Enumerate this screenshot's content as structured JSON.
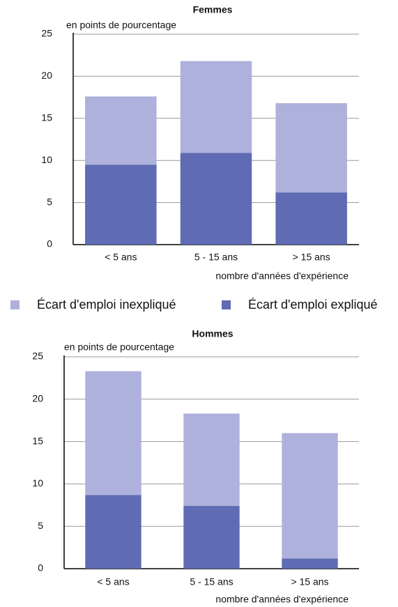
{
  "chart_data": [
    {
      "type": "stacked_bar",
      "title": "Femmes",
      "subtitle": "en points de pourcentage",
      "x_label": "nombre d'années d'expérience",
      "categories": [
        "< 5 ans",
        "5 - 15 ans",
        "> 15 ans"
      ],
      "series": [
        {
          "name": "Écart d'emploi inexpliqué",
          "color": "#aeb1db",
          "values": [
            8.1,
            10.9,
            10.6
          ]
        },
        {
          "name": "Écart d'emploi expliqué",
          "color": "#5f6bb3",
          "values": [
            9.5,
            10.9,
            6.2
          ]
        }
      ],
      "ylim": [
        0,
        25
      ],
      "yticks": [
        0,
        5,
        10,
        15,
        20,
        25
      ],
      "grid": true
    },
    {
      "type": "stacked_bar",
      "title": "Hommes",
      "subtitle": "en points de pourcentage",
      "x_label": "nombre d'années d'expérience",
      "categories": [
        "< 5 ans",
        "5 - 15 ans",
        "> 15 ans"
      ],
      "series": [
        {
          "name": "Écart d'emploi inexpliqué",
          "color": "#aeb1db",
          "values": [
            14.6,
            10.9,
            14.8
          ]
        },
        {
          "name": "Écart d'emploi expliqué",
          "color": "#5f6bb3",
          "values": [
            8.7,
            7.4,
            1.2
          ]
        }
      ],
      "ylim": [
        0,
        25
      ],
      "yticks": [
        0,
        5,
        10,
        15,
        20,
        25
      ],
      "grid": true
    }
  ]
}
